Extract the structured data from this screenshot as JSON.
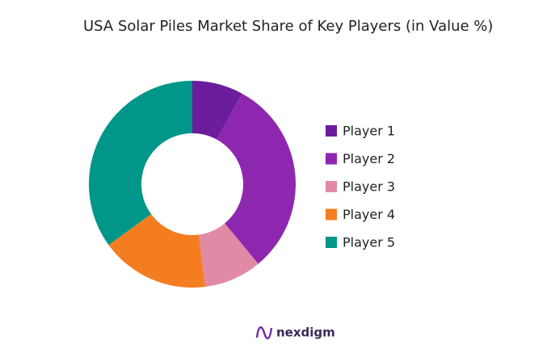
{
  "chart_data": {
    "type": "donut",
    "title": "USA Solar Piles Market Share of Key Players (in Value %)",
    "categories": [
      "Player 1",
      "Player 2",
      "Player 3",
      "Player 4",
      "Player 5"
    ],
    "values": [
      8,
      31,
      9,
      17,
      35
    ],
    "colors": [
      "#6c1d9c",
      "#8e27b0",
      "#e08aa6",
      "#f47d20",
      "#00968a"
    ],
    "legend": "right"
  },
  "brand": "nexdigm"
}
